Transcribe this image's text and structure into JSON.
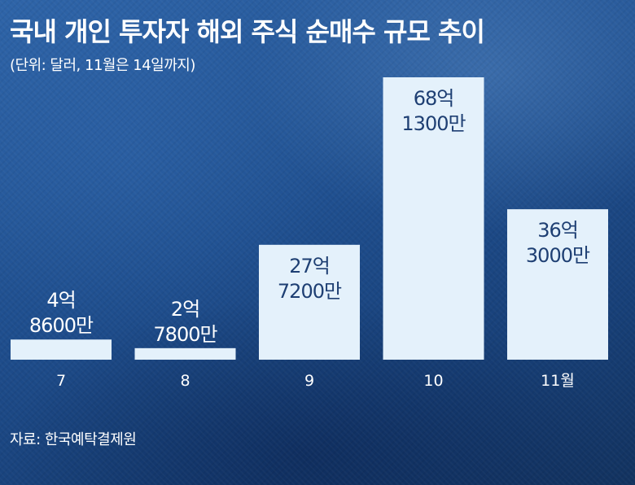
{
  "title": "국내 개인 투자자 해외 주식 순매수 규모 추이",
  "unit_note": "(단위: 달러, 11월은 14일까지)",
  "source": "자료: 한국예탁결제원",
  "colors": {
    "background": "#1f4f8f",
    "bar": "#e4f1fb",
    "label_on_bar": "#1e3f73",
    "label_on_background": "#ffffff"
  },
  "chart_data": {
    "type": "bar",
    "categories": [
      "7",
      "8",
      "9",
      "10",
      "11월"
    ],
    "values": [
      486000000,
      278000000,
      2772000000,
      6813000000,
      3630000000
    ],
    "data_labels": [
      [
        "4억",
        "8600만"
      ],
      [
        "2억",
        "7800만"
      ],
      [
        "27억",
        "7200만"
      ],
      [
        "68억",
        "1300만"
      ],
      [
        "36억",
        "3000만"
      ]
    ],
    "xlabel": "",
    "ylabel": "",
    "ylim": [
      0,
      6813000000
    ],
    "grid": false,
    "legend": "none"
  }
}
